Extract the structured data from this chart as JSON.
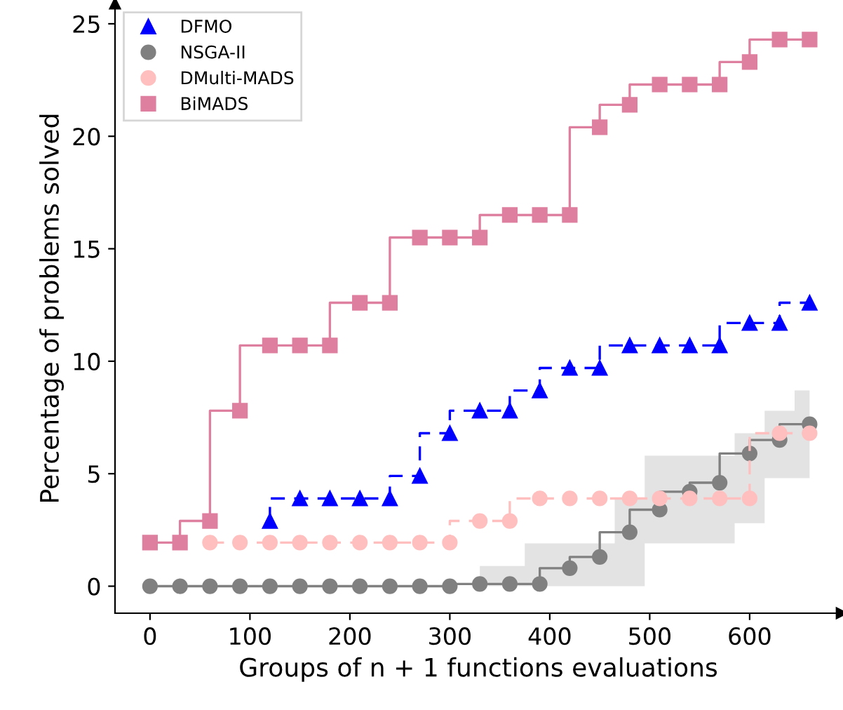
{
  "chart_data": {
    "type": "step",
    "xlabel": "Groups of n + 1 functions evaluations",
    "ylabel": "Percentage of problems solved",
    "x": [
      0,
      30,
      60,
      90,
      120,
      150,
      180,
      210,
      240,
      270,
      300,
      330,
      360,
      390,
      420,
      450,
      480,
      510,
      540,
      570,
      600,
      630,
      660
    ],
    "xlim": [
      -35,
      692
    ],
    "ylim": [
      -1.2,
      25.9
    ],
    "xticks": [
      0,
      100,
      200,
      300,
      400,
      500,
      600
    ],
    "yticks": [
      0,
      5,
      10,
      15,
      20,
      25
    ],
    "grid": false,
    "legend": "top left",
    "series": [
      {
        "name": "DFMO",
        "color": "#0000ff",
        "marker": "triangle",
        "line_style": "dashed",
        "values": [
          null,
          null,
          null,
          null,
          2.9,
          3.9,
          3.9,
          3.9,
          3.9,
          4.9,
          6.8,
          7.8,
          7.8,
          8.7,
          9.7,
          9.7,
          10.7,
          10.7,
          10.7,
          10.7,
          11.7,
          11.7,
          12.6
        ]
      },
      {
        "name": "NSGA-II",
        "color": "#808080",
        "marker": "circle",
        "line_style": "solid",
        "values": [
          0,
          0,
          0,
          0,
          0,
          0,
          0,
          0,
          0,
          0,
          0,
          0.1,
          0.1,
          0.1,
          0.8,
          1.3,
          2.4,
          3.4,
          4.2,
          4.6,
          5.9,
          6.5,
          7.2
        ],
        "lower": [
          null,
          null,
          null,
          null,
          null,
          null,
          null,
          null,
          null,
          null,
          null,
          0,
          0,
          0,
          0,
          0,
          0,
          1.9,
          1.9,
          1.9,
          2.8,
          4.8,
          4.8
        ],
        "upper": [
          null,
          null,
          null,
          null,
          null,
          null,
          null,
          null,
          null,
          null,
          null,
          0.9,
          0.9,
          1.9,
          1.9,
          1.9,
          3.85,
          5.8,
          5.8,
          5.8,
          6.8,
          7.8,
          8.7
        ]
      },
      {
        "name": "DMulti-MADS",
        "color": "#ffbfbf",
        "marker": "circle",
        "line_style": "dashed",
        "values": [
          null,
          null,
          1.94,
          1.94,
          1.94,
          1.94,
          1.94,
          1.94,
          1.94,
          1.94,
          1.94,
          2.9,
          2.9,
          3.9,
          3.9,
          3.9,
          3.9,
          3.9,
          3.9,
          3.9,
          3.9,
          6.8,
          6.8
        ]
      },
      {
        "name": "BiMADS",
        "color": "#df7fa0",
        "marker": "square",
        "line_style": "solid",
        "values": [
          1.94,
          1.94,
          2.9,
          7.8,
          10.7,
          10.7,
          10.7,
          12.6,
          12.6,
          15.5,
          15.5,
          15.5,
          16.5,
          16.5,
          16.5,
          20.4,
          21.4,
          22.3,
          22.3,
          22.3,
          23.3,
          24.3,
          24.3
        ]
      }
    ]
  }
}
